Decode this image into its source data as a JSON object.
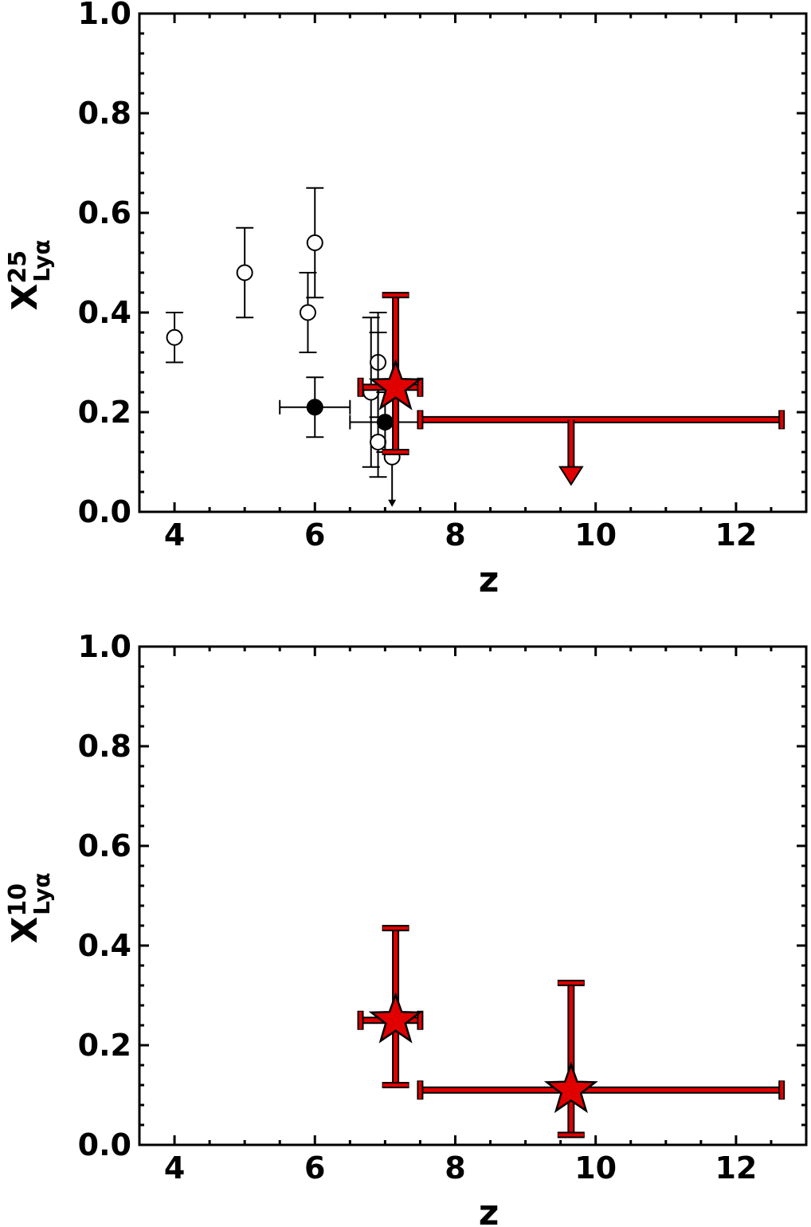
{
  "chart_data": [
    {
      "type": "scatter",
      "xlabel": "z",
      "ylabel": {
        "base": "X",
        "superscript": "25",
        "subscript": "Lyα"
      },
      "xlim": [
        3.5,
        13.0
      ],
      "ylim": [
        0.0,
        1.0
      ],
      "xticks": [
        "4",
        "6",
        "8",
        "10",
        "12"
      ],
      "yticks": [
        "0.0",
        "0.2",
        "0.4",
        "0.6",
        "0.8",
        "1.0"
      ],
      "grid": false,
      "series": [
        {
          "marker": "open-circle",
          "color": "#ffffff",
          "edge_color": "#000000",
          "points": [
            {
              "x": 4.0,
              "y": 0.35,
              "yerr_low": 0.05,
              "yerr_high": 0.05
            },
            {
              "x": 5.0,
              "y": 0.48,
              "yerr_low": 0.09,
              "yerr_high": 0.09
            },
            {
              "x": 5.9,
              "y": 0.4,
              "yerr_low": 0.08,
              "yerr_high": 0.08
            },
            {
              "x": 6.0,
              "y": 0.54,
              "yerr_low": 0.11,
              "yerr_high": 0.11
            },
            {
              "x": 6.8,
              "y": 0.24,
              "yerr_low": 0.15,
              "yerr_high": 0.15
            },
            {
              "x": 6.9,
              "y": 0.3,
              "yerr_low": 0.11,
              "yerr_high": 0.1
            },
            {
              "x": 6.9,
              "y": 0.14,
              "yerr_low": 0.07,
              "yerr_high": 0.22
            },
            {
              "x": 7.1,
              "y": 0.11,
              "upper_limit": true
            }
          ]
        },
        {
          "marker": "filled-circle",
          "color": "#000000",
          "points": [
            {
              "x": 6.0,
              "y": 0.21,
              "xerr_low": 0.5,
              "xerr_high": 0.5,
              "yerr_low": 0.06,
              "yerr_high": 0.06
            },
            {
              "x": 7.0,
              "y": 0.18,
              "xerr_low": 0.5,
              "xerr_high": 0.5,
              "yerr_low": 0.06,
              "yerr_high": 0.06
            }
          ]
        },
        {
          "marker": "star",
          "color": "#e00000",
          "edge_color": "#000000",
          "points": [
            {
              "x": 7.15,
              "y": 0.25,
              "xerr_low": 0.5,
              "xerr_high": 0.35,
              "yerr_low": 0.13,
              "yerr_high": 0.185
            },
            {
              "x": 9.65,
              "y": 0.185,
              "xerr_low": 2.15,
              "xerr_high": 3.0,
              "upper_limit": true,
              "limit_to": 0.055,
              "no_marker": true
            }
          ]
        }
      ]
    },
    {
      "type": "scatter",
      "xlabel": "z",
      "ylabel": {
        "base": "X",
        "superscript": "10",
        "subscript": "Lyα"
      },
      "xlim": [
        3.5,
        13.0
      ],
      "ylim": [
        0.0,
        1.0
      ],
      "xticks": [
        "4",
        "6",
        "8",
        "10",
        "12"
      ],
      "yticks": [
        "0.0",
        "0.2",
        "0.4",
        "0.6",
        "0.8",
        "1.0"
      ],
      "grid": false,
      "series": [
        {
          "marker": "star",
          "color": "#e00000",
          "edge_color": "#000000",
          "points": [
            {
              "x": 7.15,
              "y": 0.25,
              "xerr_low": 0.5,
              "xerr_high": 0.35,
              "yerr_low": 0.13,
              "yerr_high": 0.185
            },
            {
              "x": 9.65,
              "y": 0.11,
              "xerr_low": 2.15,
              "xerr_high": 3.0,
              "yerr_low": 0.09,
              "yerr_high": 0.215
            }
          ]
        }
      ]
    }
  ]
}
